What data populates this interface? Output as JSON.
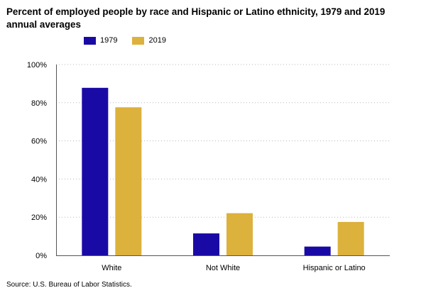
{
  "chart_data": {
    "type": "bar",
    "title": "Percent of employed people by race and Hispanic or Latino ethnicity, 1979 and 2019 annual averages",
    "categories": [
      "White",
      "Not White",
      "Hispanic or Latino"
    ],
    "series": [
      {
        "name": "1979",
        "color": "#1a0aa5",
        "values": [
          87.8,
          11.5,
          4.6
        ]
      },
      {
        "name": "2019",
        "color": "#dcb13c",
        "values": [
          77.6,
          22.1,
          17.5
        ]
      }
    ],
    "ylim": [
      0,
      100
    ],
    "yticks": [
      "0%",
      "20%",
      "40%",
      "60%",
      "80%",
      "100%"
    ],
    "grid": true,
    "legend": "top-left",
    "source": "Source: U.S. Bureau of Labor Statistics."
  }
}
